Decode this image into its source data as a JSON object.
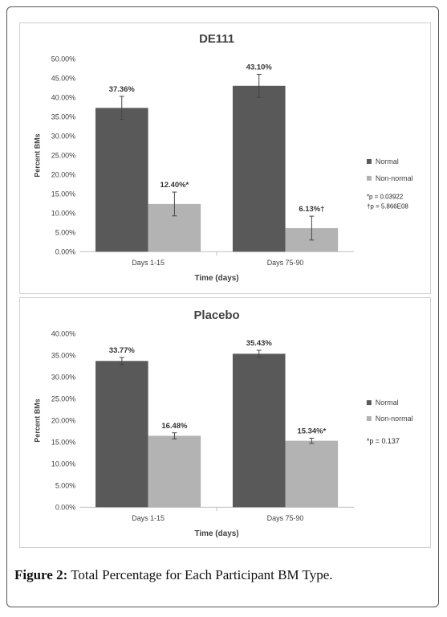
{
  "caption": {
    "label": "Figure 2:",
    "text": " Total Percentage for Each Participant BM Type."
  },
  "colors": {
    "normal": "#595959",
    "nonnormal": "#b3b3b3",
    "axis": "#bfbfbf",
    "text": "#404040"
  },
  "chart_data": [
    {
      "type": "bar",
      "title": "DE111",
      "xlabel": "Time (days)",
      "ylabel": "Percent BMs",
      "categories": [
        "Days 1-15",
        "Days 75-90"
      ],
      "ylim": [
        0,
        50
      ],
      "yticks": [
        "0.00%",
        "5.00%",
        "10.00%",
        "15.00%",
        "20.00%",
        "25.00%",
        "30.00%",
        "35.00%",
        "40.00%",
        "45.00%",
        "50.00%"
      ],
      "grid": false,
      "legend_position": "right",
      "series": [
        {
          "name": "Normal",
          "values": [
            37.36,
            43.1
          ],
          "errors": [
            3.0,
            3.0
          ],
          "labels": [
            "37.36%",
            "43.10%"
          ]
        },
        {
          "name": "Non-normal",
          "values": [
            12.4,
            6.13
          ],
          "errors": [
            3.1,
            3.1
          ],
          "labels": [
            "12.40%*",
            "6.13%†"
          ]
        }
      ],
      "notes": [
        "*p = 0.03922",
        "†p = 5.866E08"
      ]
    },
    {
      "type": "bar",
      "title": "Placebo",
      "xlabel": "Time (days)",
      "ylabel": "Percent BMs",
      "categories": [
        "Days 1-15",
        "Days 75-90"
      ],
      "ylim": [
        0,
        40
      ],
      "yticks": [
        "0.00%",
        "5.00%",
        "10.00%",
        "15.00%",
        "20.00%",
        "25.00%",
        "30.00%",
        "35.00%",
        "40.00%"
      ],
      "grid": false,
      "legend_position": "right",
      "series": [
        {
          "name": "Normal",
          "values": [
            33.77,
            35.43
          ],
          "errors": [
            0.8,
            0.8
          ],
          "labels": [
            "33.77%",
            "35.43%"
          ]
        },
        {
          "name": "Non-normal",
          "values": [
            16.48,
            15.34
          ],
          "errors": [
            0.7,
            0.6
          ],
          "labels": [
            "16.48%",
            "15.34%*"
          ]
        }
      ],
      "notes": [
        "*p = 0.137"
      ]
    }
  ]
}
